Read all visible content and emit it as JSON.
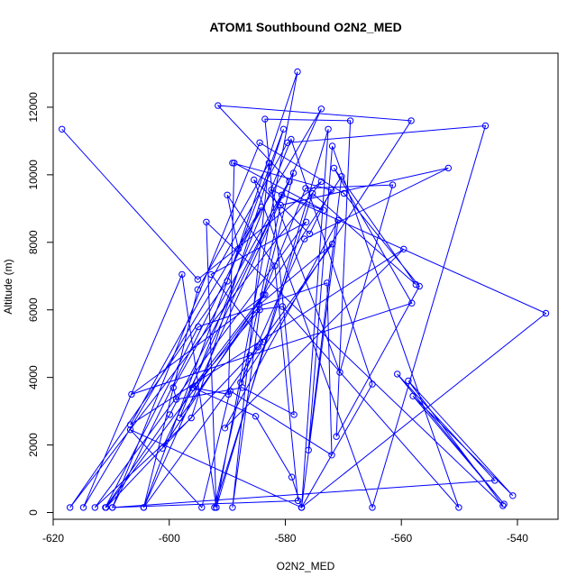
{
  "chart_data": {
    "type": "line",
    "title": "ATOM1 Southbound O2N2_MED",
    "xlabel": "O2N2_MED",
    "ylabel": "Altitude (m)",
    "xlim": [
      -620,
      -533
    ],
    "ylim": [
      -200,
      13600
    ],
    "xticks": [
      -620,
      -600,
      -580,
      -560,
      -540
    ],
    "yticks": [
      0,
      2000,
      4000,
      6000,
      8000,
      10000,
      12000
    ],
    "grid": false,
    "color": "#0000ff",
    "marker": "open-circle",
    "series": [
      {
        "points": [
          [
            -618.5,
            11350
          ],
          [
            -595.1,
            6900
          ],
          [
            -573.8,
            9800
          ],
          [
            -617.1,
            150
          ],
          [
            -590.0,
            6850
          ],
          [
            -577.9,
            13050
          ],
          [
            -591.9,
            150
          ],
          [
            -597.8,
            7050
          ],
          [
            -614.8,
            150
          ],
          [
            -584.1,
            9050
          ],
          [
            -609.8,
            150
          ],
          [
            -577.8,
            350
          ],
          [
            -581.8,
            7300
          ],
          [
            -590.0,
            9400
          ],
          [
            -588.1,
            7800
          ],
          [
            -573.8,
            11950
          ],
          [
            -604.4,
            150
          ],
          [
            -583.8,
            5050
          ],
          [
            -592.8,
            7050
          ],
          [
            -576.4,
            8600
          ],
          [
            -612.8,
            150
          ],
          [
            -596.2,
            2800
          ],
          [
            -580.3,
            11350
          ],
          [
            -604.4,
            150
          ],
          [
            -595.1,
            6600
          ],
          [
            -582.8,
            10350
          ],
          [
            -589.1,
            150
          ],
          [
            -584.4,
            6000
          ],
          [
            -595.9,
            3700
          ],
          [
            -585.1,
            2850
          ],
          [
            -578.9,
            1050
          ],
          [
            -577.2,
            150
          ],
          [
            -565.0,
            3800
          ],
          [
            -579.0,
            11050
          ],
          [
            -598.2,
            2800
          ],
          [
            -585.0,
            6000
          ],
          [
            -580.5,
            6100
          ],
          [
            -550.1,
            150
          ],
          [
            -571.9,
            10850
          ],
          [
            -576.0,
            1850
          ],
          [
            -570.3,
            9950
          ],
          [
            -601.2,
            1900
          ],
          [
            -580.6,
            9400
          ],
          [
            -573.4,
            8950
          ],
          [
            -588.8,
            10350
          ],
          [
            -589.8,
            3500
          ],
          [
            -596.0,
            3700
          ],
          [
            -583.8,
            6450
          ],
          [
            -578.6,
            10050
          ],
          [
            -599.3,
            3700
          ],
          [
            -598.8,
            3350
          ],
          [
            -587.4,
            3700
          ],
          [
            -578.5,
            2900
          ],
          [
            -583.5,
            11650
          ],
          [
            -568.8,
            11600
          ],
          [
            -571.2,
            2250
          ],
          [
            -556.9,
            6700
          ],
          [
            -569.9,
            9450
          ],
          [
            -584.4,
            10950
          ],
          [
            -609.8,
            150
          ],
          [
            -543.9,
            950
          ],
          [
            -560.7,
            4100
          ],
          [
            -542.3,
            250
          ],
          [
            -558.0,
            3450
          ],
          [
            -540.8,
            500
          ],
          [
            -558.8,
            3900
          ],
          [
            -542.5,
            200
          ],
          [
            -593.6,
            8600
          ],
          [
            -591.9,
            150
          ],
          [
            -572.6,
            11350
          ],
          [
            -577.2,
            150
          ],
          [
            -606.7,
            2450
          ],
          [
            -594.4,
            150
          ],
          [
            -589.5,
            3600
          ],
          [
            -572.0,
            1700
          ],
          [
            -572.8,
            6800
          ],
          [
            -595.0,
            5500
          ],
          [
            -611.0,
            150
          ],
          [
            -599.9,
            2900
          ],
          [
            -579.3,
            9800
          ],
          [
            -591.6,
            12050
          ],
          [
            -558.3,
            11600
          ],
          [
            -587.7,
            3850
          ],
          [
            -576.7,
            8100
          ],
          [
            -551.9,
            10200
          ],
          [
            -580.8,
            9100
          ],
          [
            -592.2,
            150
          ],
          [
            -575.3,
            9450
          ],
          [
            -557.5,
            6750
          ],
          [
            -571.6,
            10200
          ],
          [
            -558.2,
            6200
          ],
          [
            -586.1,
            4650
          ],
          [
            -606.5,
            3500
          ],
          [
            -583.5,
            6450
          ],
          [
            -610.9,
            150
          ],
          [
            -584.7,
            4900
          ],
          [
            -571.9,
            7950
          ],
          [
            -584.5,
            6150
          ],
          [
            -576.5,
            9600
          ],
          [
            -561.5,
            9700
          ],
          [
            -570.6,
            4150
          ],
          [
            -582.4,
            9550
          ],
          [
            -535.1,
            5900
          ],
          [
            -577.2,
            150
          ],
          [
            -570.9,
            8650
          ],
          [
            -590.4,
            2500
          ],
          [
            -559.6,
            7800
          ],
          [
            -606.7,
            2600
          ],
          [
            -579.6,
            10950
          ],
          [
            -545.5,
            11450
          ],
          [
            -565.0,
            150
          ],
          [
            -585.4,
            9850
          ],
          [
            -575.8,
            8250
          ],
          [
            -572.1,
            9550
          ],
          [
            -589.1,
            10350
          ]
        ]
      }
    ]
  }
}
